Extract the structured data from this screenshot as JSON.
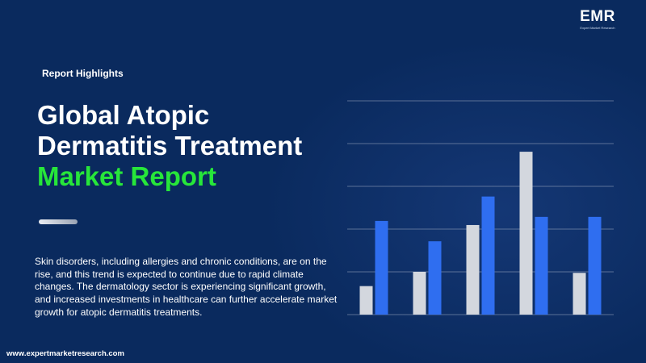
{
  "brand": {
    "logo_text": "EMR",
    "logo_tagline": "Expert Market Research",
    "website": "www.expertmarketresearch.com"
  },
  "header": {
    "label": "Report Highlights"
  },
  "title": {
    "line1": "Global Atopic",
    "line2": "Dermatitis Treatment",
    "line3": "Market Report"
  },
  "description": "Skin disorders, including allergies and chronic conditions, are on the rise, and this trend is expected to continue due to rapid climate changes. The dermatology sector is experiencing significant growth, and increased investments in healthcare can further accelerate market growth for atopic dermatitis treatments.",
  "colors": {
    "background": "#0a2a5e",
    "accent_green": "#27e63a",
    "bar_grey": "#d3d7de",
    "bar_blue": "#2f6ef0",
    "gridline": "#9aa7bf"
  },
  "chart_data": {
    "type": "bar",
    "categories": [
      "",
      "",
      "",
      "",
      ""
    ],
    "series": [
      {
        "values": [
          14,
          21,
          44,
          80,
          20.5
        ]
      },
      {
        "values": [
          46,
          36,
          58,
          48,
          48
        ]
      }
    ],
    "ylim": [
      0,
      105
    ],
    "gridlines": 6,
    "grid": true,
    "legend": "none",
    "xlabel": "",
    "ylabel": ""
  }
}
